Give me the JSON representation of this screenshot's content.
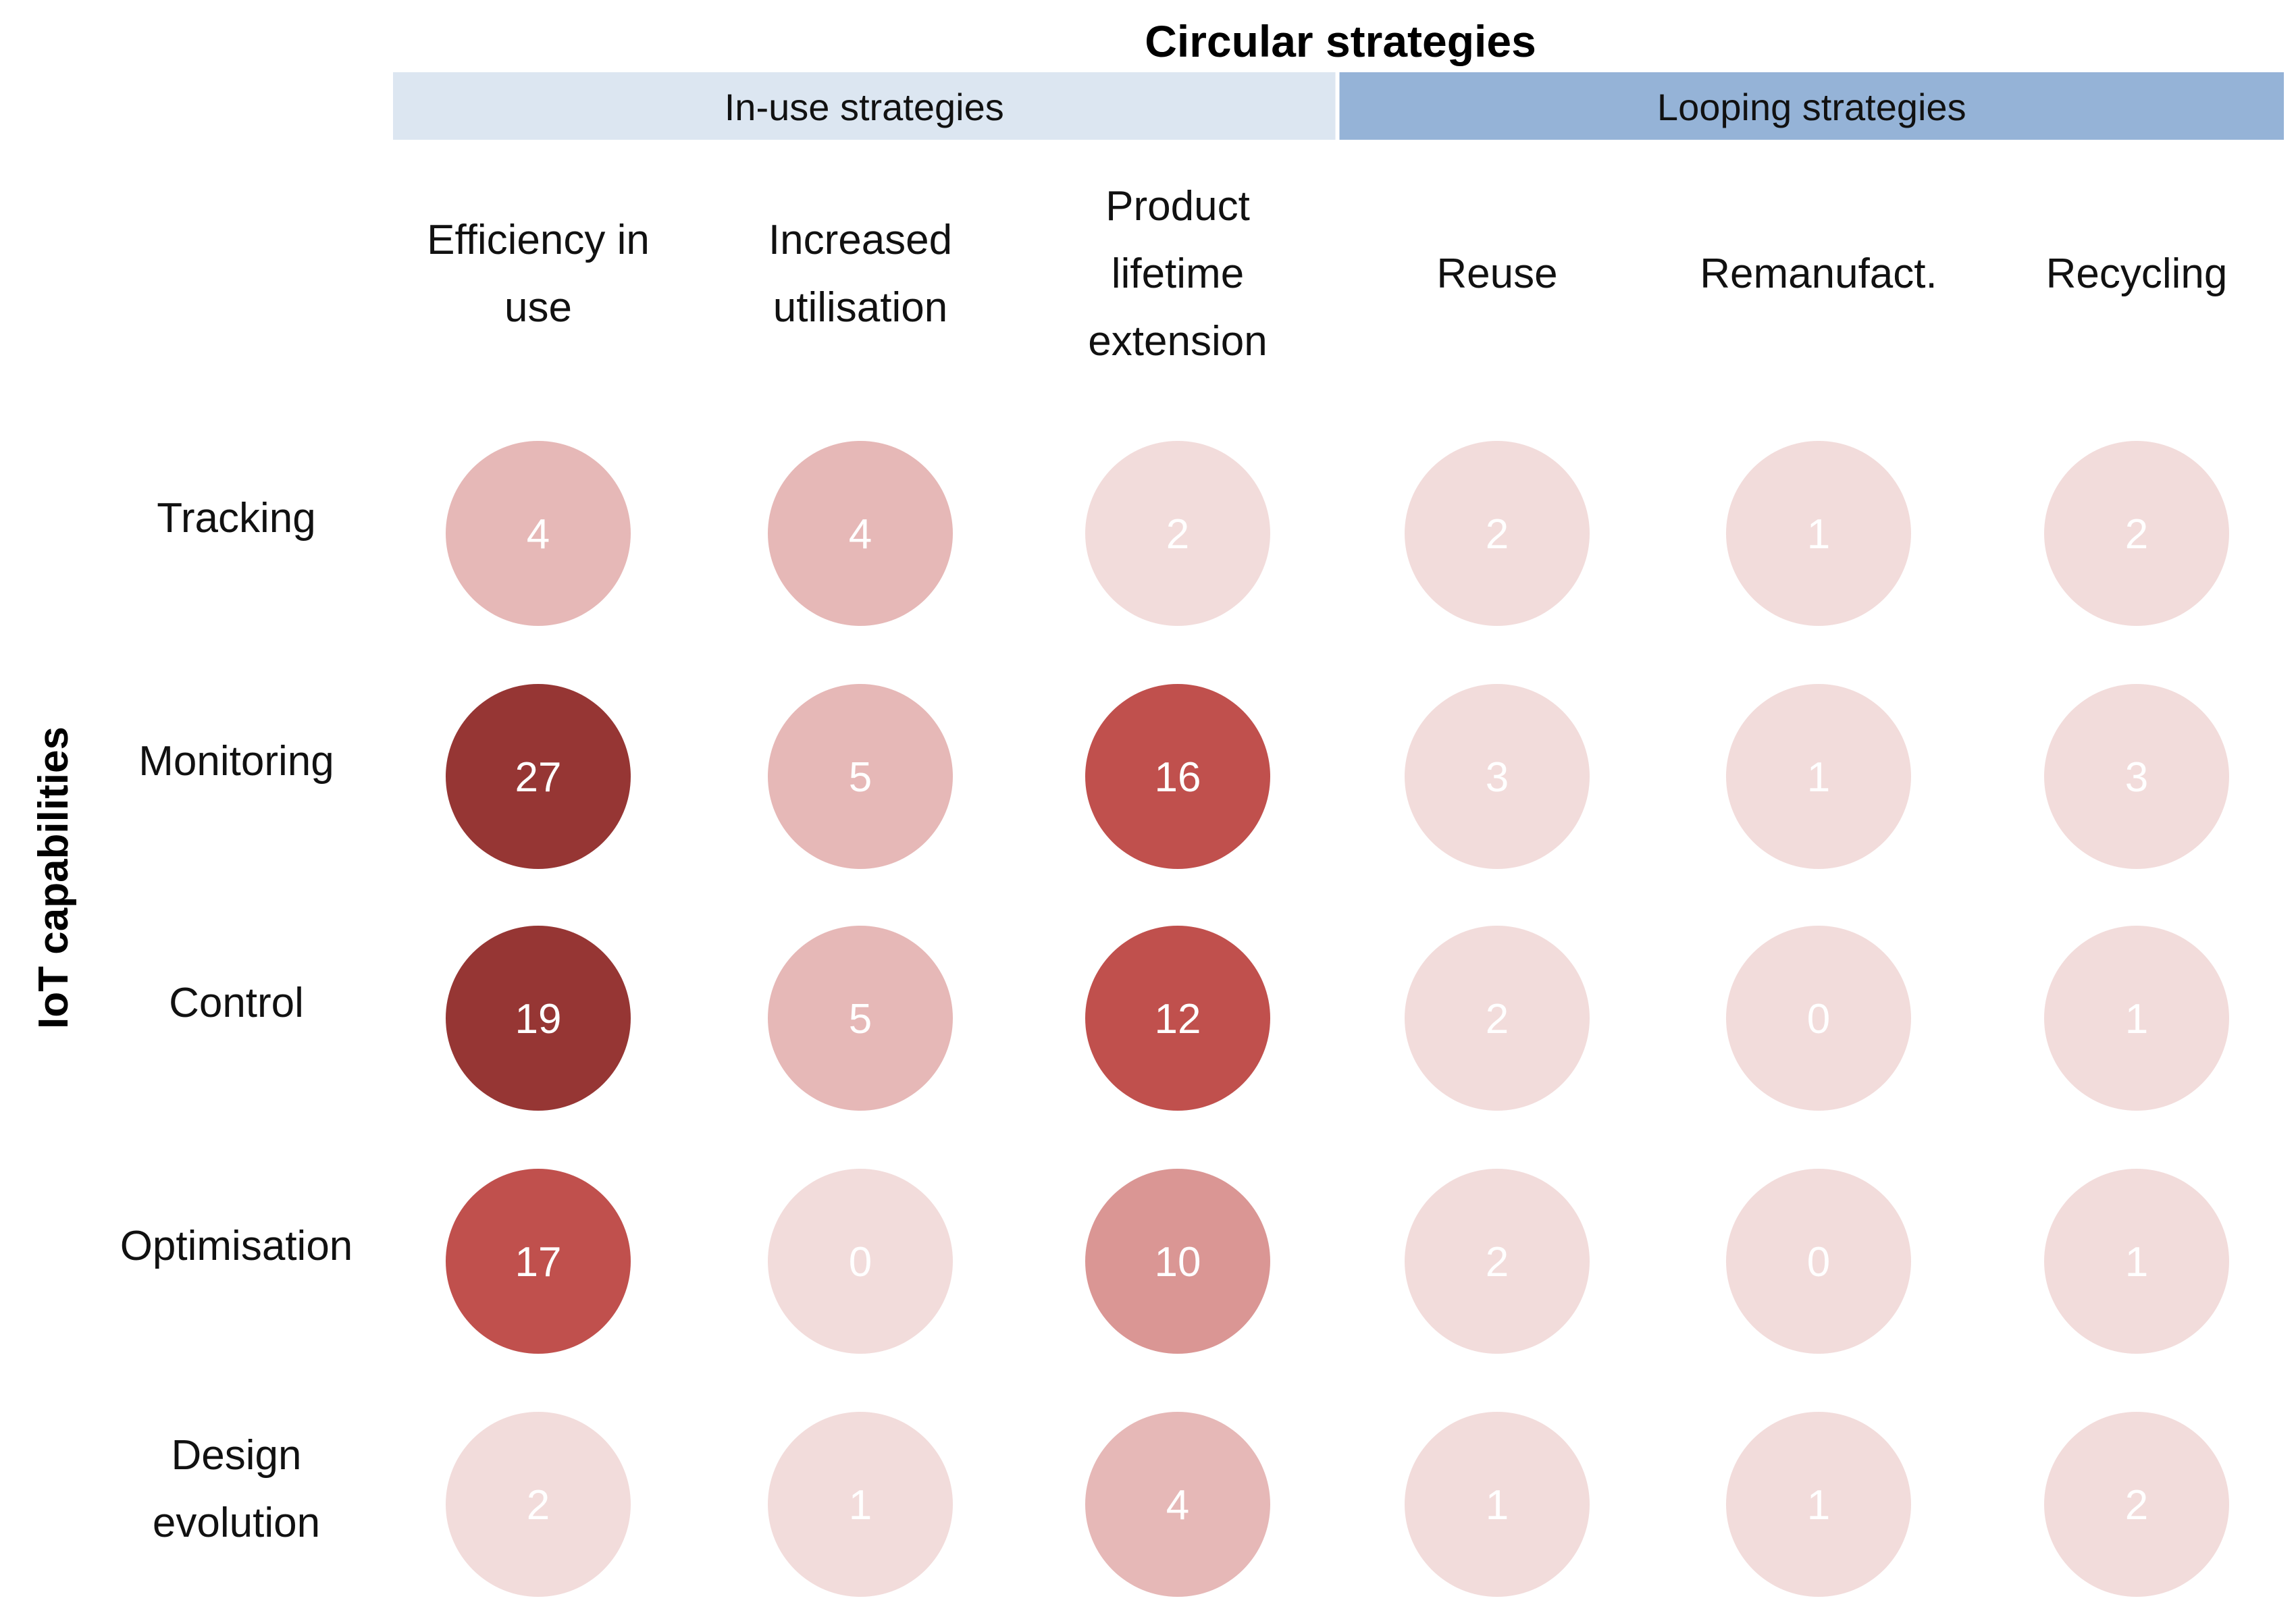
{
  "chart_data": {
    "type": "heatmap",
    "title": "Circular strategies",
    "ylabel": "IoT capabilities",
    "groups": [
      {
        "label": "In-use strategies",
        "color": "#dce6f1",
        "columns": [
          0,
          1,
          2
        ]
      },
      {
        "label": "Looping strategies",
        "color": "#95b3d7",
        "columns": [
          3,
          4,
          5
        ]
      }
    ],
    "columns": [
      {
        "lines": [
          "Efficiency in",
          "use"
        ]
      },
      {
        "lines": [
          "Increased",
          "utilisation"
        ]
      },
      {
        "lines": [
          "Product",
          "lifetime",
          "extension"
        ]
      },
      {
        "lines": [
          "Reuse"
        ]
      },
      {
        "lines": [
          "Remanufact."
        ]
      },
      {
        "lines": [
          "Recycling"
        ]
      }
    ],
    "rows": [
      {
        "lines": [
          "Tracking"
        ]
      },
      {
        "lines": [
          "Monitoring"
        ]
      },
      {
        "lines": [
          "Control"
        ]
      },
      {
        "lines": [
          "Optimisation"
        ]
      },
      {
        "lines": [
          "Design",
          "evolution"
        ]
      }
    ],
    "values": [
      [
        4,
        4,
        2,
        2,
        1,
        2
      ],
      [
        27,
        5,
        16,
        3,
        1,
        3
      ],
      [
        19,
        5,
        12,
        2,
        0,
        1
      ],
      [
        17,
        0,
        10,
        2,
        0,
        1
      ],
      [
        2,
        1,
        4,
        1,
        1,
        2
      ]
    ],
    "color_scale": [
      {
        "max": 3,
        "color": "#f2dcdb"
      },
      {
        "max": 9,
        "color": "#e6b8b7"
      },
      {
        "max": 11,
        "color": "#da9694"
      },
      {
        "max": 18,
        "color": "#c0504d"
      },
      {
        "max": 1000,
        "color": "#963634"
      }
    ]
  }
}
